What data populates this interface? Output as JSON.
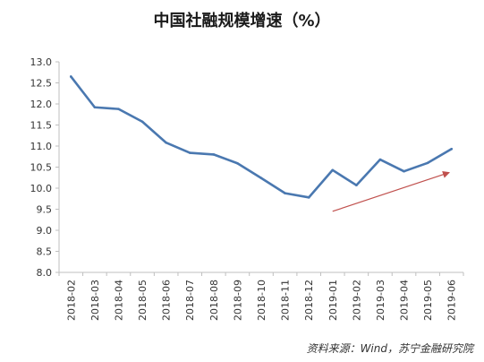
{
  "chart_data": {
    "type": "line",
    "title": "中国社融规模增速（%）",
    "categories": [
      "2018-02",
      "2018-03",
      "2018-04",
      "2018-05",
      "2018-06",
      "2018-07",
      "2018-08",
      "2018-09",
      "2018-10",
      "2018-11",
      "2018-12",
      "2019-01",
      "2019-02",
      "2019-03",
      "2019-04",
      "2019-05",
      "2019-06"
    ],
    "series": [
      {
        "values": [
          12.65,
          11.92,
          11.88,
          11.58,
          11.08,
          10.84,
          10.8,
          10.59,
          10.24,
          9.88,
          9.78,
          10.43,
          10.07,
          10.68,
          10.4,
          10.6,
          10.93
        ]
      }
    ],
    "yticks": [
      "8.0",
      "8.5",
      "9.0",
      "9.5",
      "10.0",
      "10.5",
      "11.0",
      "11.5",
      "12.0",
      "12.5",
      "13.0"
    ],
    "ylim": [
      8.0,
      13.0
    ],
    "ytick_step": 0.5,
    "grid": false,
    "annotation": {
      "type": "arrow",
      "from": [
        11,
        9.45
      ],
      "to": [
        15.9,
        10.37
      ]
    },
    "colors": {
      "line": "#4a78b0",
      "arrow": "#c0504d",
      "axis": "#bfbfbf",
      "text": "#333333"
    }
  },
  "source_note": "资料来源：Wind，苏宁金融研究院"
}
